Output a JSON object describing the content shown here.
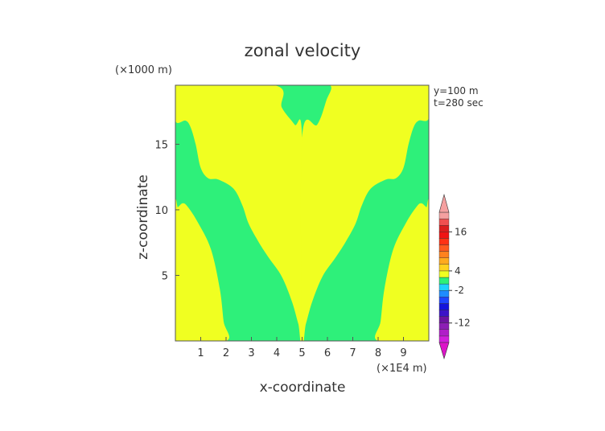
{
  "chart_data": {
    "type": "heatmap",
    "title": "zonal velocity",
    "xlabel": "x-coordinate",
    "ylabel": "z-coordinate",
    "x_unit_label": "(×1E4 m)",
    "y_unit_label": "(×1000 m)",
    "info_lines": [
      "y=100 m",
      "t=280 sec"
    ],
    "xlim": [
      0,
      10
    ],
    "ylim": [
      0,
      19.5
    ],
    "x_ticks": [
      1,
      2,
      3,
      4,
      5,
      6,
      7,
      8,
      9
    ],
    "y_ticks": [
      5,
      10,
      15
    ],
    "fill_colors": {
      "positive": "#f0ff21",
      "negative": "#2ef07a"
    },
    "regions": [
      {
        "name": "left-outer-positive",
        "sign": "positive",
        "boundary": [
          [
            0,
            0
          ],
          [
            2.0,
            0
          ],
          [
            1.9,
            1.5
          ],
          [
            1.75,
            4
          ],
          [
            1.4,
            7
          ],
          [
            0.9,
            9
          ],
          [
            0.5,
            10.2
          ],
          [
            0.3,
            10.5
          ],
          [
            0.1,
            10.2
          ],
          [
            0,
            10
          ]
        ]
      },
      {
        "name": "left-inner-positive",
        "sign": "positive",
        "boundary": [
          [
            0,
            16.8
          ],
          [
            0.4,
            16.8
          ],
          [
            0.6,
            16.3
          ],
          [
            0.8,
            15
          ],
          [
            1.0,
            13.2
          ],
          [
            1.3,
            12.4
          ],
          [
            1.7,
            12.3
          ],
          [
            2.3,
            11.6
          ],
          [
            2.65,
            10.3
          ],
          [
            2.9,
            8.9
          ],
          [
            3.3,
            7.5
          ],
          [
            3.7,
            6.3
          ],
          [
            4.2,
            4.9
          ],
          [
            4.6,
            3.0
          ],
          [
            4.85,
            1.3
          ],
          [
            5.0,
            0.4
          ],
          [
            5.0,
            15.5
          ],
          [
            4.7,
            16.5
          ],
          [
            4.2,
            17.8
          ],
          [
            3.9,
            19.5
          ],
          [
            0,
            19.5
          ]
        ]
      },
      {
        "name": "right-inner-positive",
        "sign": "positive",
        "boundary": [
          [
            5.0,
            19.5
          ],
          [
            6.1,
            19.5
          ],
          [
            5.95,
            18.3
          ],
          [
            5.6,
            16.5
          ],
          [
            5.0,
            15.5
          ],
          [
            5.0,
            0.4
          ],
          [
            5.15,
            1.3
          ],
          [
            5.4,
            3.0
          ],
          [
            5.8,
            4.9
          ],
          [
            6.3,
            6.3
          ],
          [
            6.7,
            7.5
          ],
          [
            7.1,
            8.9
          ],
          [
            7.35,
            10.3
          ],
          [
            7.7,
            11.6
          ],
          [
            8.3,
            12.3
          ],
          [
            8.7,
            12.4
          ],
          [
            9.0,
            13.2
          ],
          [
            9.2,
            15
          ],
          [
            9.4,
            16.3
          ],
          [
            9.6,
            16.8
          ],
          [
            10,
            17
          ],
          [
            10,
            19.5
          ]
        ]
      },
      {
        "name": "right-outer-positive",
        "sign": "positive",
        "boundary": [
          [
            8.0,
            0
          ],
          [
            10,
            0
          ],
          [
            10,
            10
          ],
          [
            9.9,
            10.2
          ],
          [
            9.7,
            10.5
          ],
          [
            9.5,
            10.2
          ],
          [
            9.1,
            9
          ],
          [
            8.6,
            7
          ],
          [
            8.25,
            4
          ],
          [
            8.1,
            1.5
          ]
        ]
      }
    ],
    "colorbar": {
      "labels": [
        "16",
        "4",
        "-2",
        "-12"
      ],
      "label_values": [
        16,
        4,
        -2,
        -12
      ],
      "range": [
        -18,
        22
      ],
      "bands": [
        {
          "from": -18,
          "to": -16,
          "color": "#d21edc"
        },
        {
          "from": -16,
          "to": -14,
          "color": "#b01ec8"
        },
        {
          "from": -14,
          "to": -12,
          "color": "#8c1eb4"
        },
        {
          "from": -12,
          "to": -10,
          "color": "#6e14a0"
        },
        {
          "from": -10,
          "to": -8,
          "color": "#3c14c8"
        },
        {
          "from": -8,
          "to": -6,
          "color": "#1414dc"
        },
        {
          "from": -6,
          "to": -4,
          "color": "#1e46ff"
        },
        {
          "from": -4,
          "to": -2,
          "color": "#1e8cff"
        },
        {
          "from": -2,
          "to": 0,
          "color": "#1ed2ff"
        },
        {
          "from": 0,
          "to": 2,
          "color": "#2ef07a"
        },
        {
          "from": 2,
          "to": 4,
          "color": "#f0ff21"
        },
        {
          "from": 4,
          "to": 6,
          "color": "#ffd21e"
        },
        {
          "from": 6,
          "to": 8,
          "color": "#ffaa1e"
        },
        {
          "from": 8,
          "to": 10,
          "color": "#ff821e"
        },
        {
          "from": 10,
          "to": 12,
          "color": "#ff5a1e"
        },
        {
          "from": 12,
          "to": 14,
          "color": "#ff3214"
        },
        {
          "from": 14,
          "to": 16,
          "color": "#f01414"
        },
        {
          "from": 16,
          "to": 18,
          "color": "#dc1e1e"
        },
        {
          "from": 18,
          "to": 20,
          "color": "#f05050"
        },
        {
          "from": 20,
          "to": 22,
          "color": "#f5a0a0"
        }
      ],
      "under_color": "#dc14c8",
      "over_color": "#f5a0a0"
    },
    "legend_position": "right",
    "grid": false
  }
}
